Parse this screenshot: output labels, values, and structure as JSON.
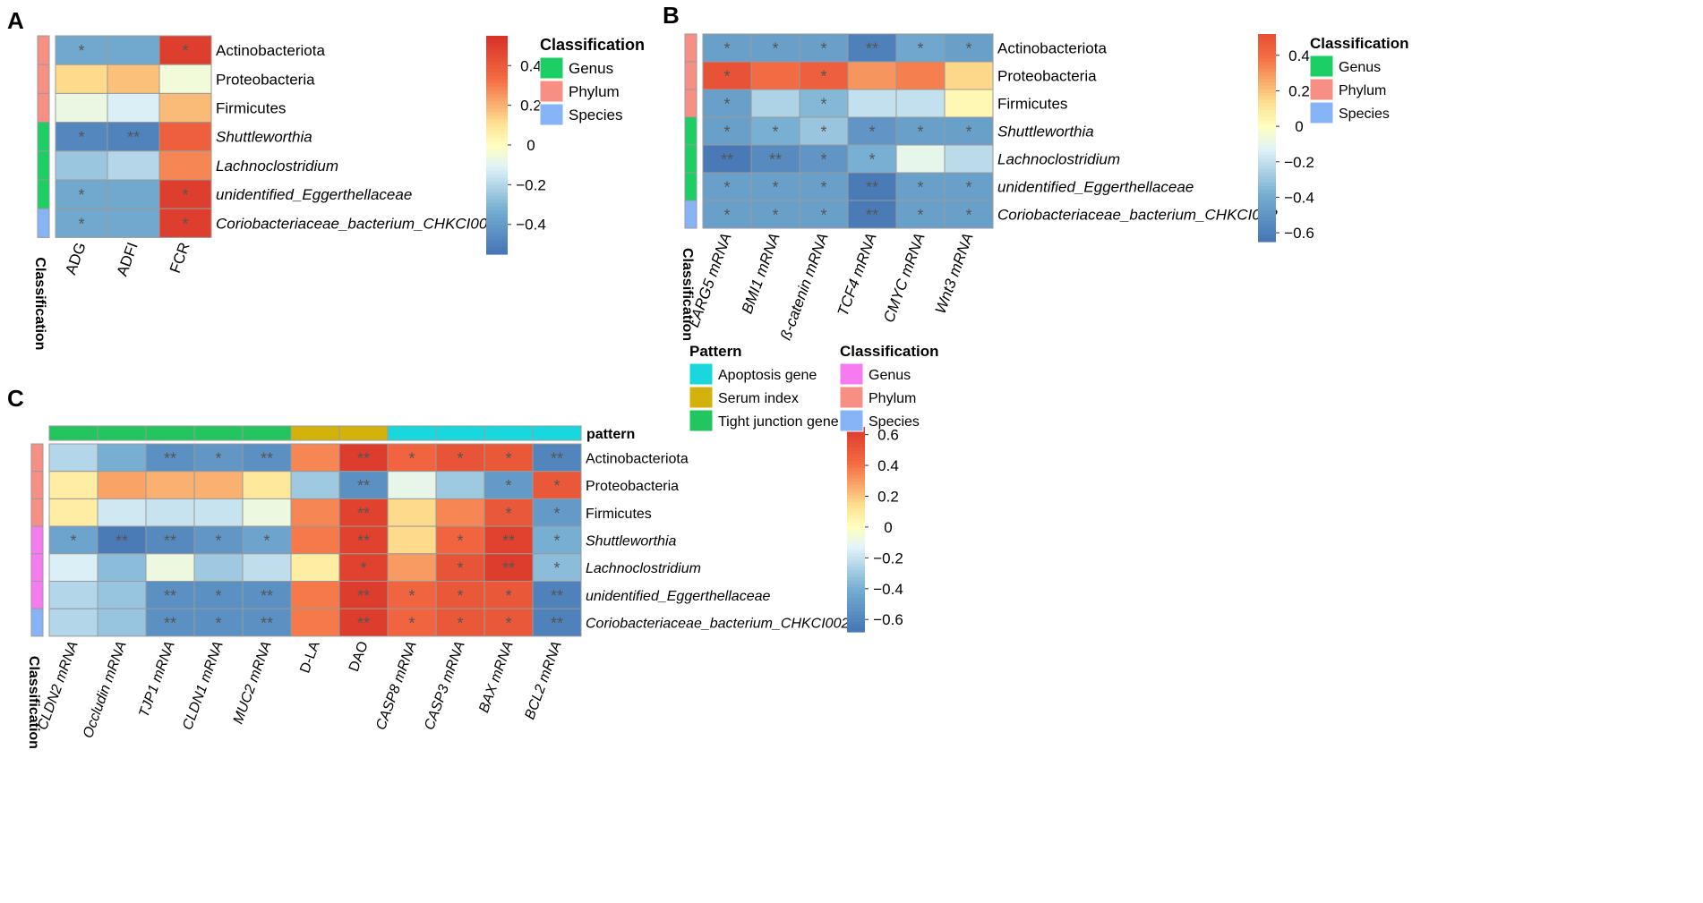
{
  "figure": {
    "description": "Spearman correlation heatmaps between gut microbiota and host indices"
  },
  "chart_data": [
    {
      "id": "A",
      "type": "heatmap",
      "panel_label": "A",
      "rows": [
        "Actinobacteriota",
        "Proteobacteria",
        "Firmicutes",
        "Shuttleworthia",
        "Lachnoclostridium",
        "unidentified_Eggerthellaceae",
        "Coriobacteriaceae_bacterium_CHKCI002"
      ],
      "row_italic": [
        false,
        false,
        false,
        true,
        true,
        true,
        true
      ],
      "row_class": [
        "Phylum",
        "Phylum",
        "Phylum",
        "Genus",
        "Genus",
        "Genus",
        "Species"
      ],
      "columns": [
        "ADG",
        "ADFI",
        "FCR"
      ],
      "values": [
        [
          -0.35,
          -0.35,
          0.5
        ],
        [
          0.12,
          0.17,
          -0.05
        ],
        [
          -0.07,
          -0.12,
          0.18
        ],
        [
          -0.48,
          -0.5,
          0.38
        ],
        [
          -0.25,
          -0.2,
          0.28
        ],
        [
          -0.35,
          -0.35,
          0.5
        ],
        [
          -0.35,
          -0.35,
          0.5
        ]
      ],
      "significance": [
        [
          "*",
          "",
          "*"
        ],
        [
          "",
          "",
          ""
        ],
        [
          "",
          "",
          ""
        ],
        [
          "*",
          "**",
          ""
        ],
        [
          "",
          "",
          ""
        ],
        [
          "*",
          "",
          "*"
        ],
        [
          "*",
          "",
          "*"
        ]
      ],
      "classification_label": "Classification",
      "colorbar": {
        "min": -0.55,
        "max": 0.55,
        "ticks": [
          0.4,
          0.2,
          0,
          -0.2,
          -0.4
        ],
        "tick_labels": [
          "0.4",
          "0.2",
          "0",
          "−0.2",
          "−0.4"
        ]
      },
      "legends": [
        {
          "title": "Classification",
          "items": [
            {
              "label": "Genus",
              "color": "#1ccf65"
            },
            {
              "label": "Phylum",
              "color": "#f78f85"
            },
            {
              "label": "Species",
              "color": "#86b4f6"
            }
          ]
        }
      ]
    },
    {
      "id": "B",
      "type": "heatmap",
      "panel_label": "B",
      "rows": [
        "Actinobacteriota",
        "Proteobacteria",
        "Firmicutes",
        "Shuttleworthia",
        "Lachnoclostridium",
        "unidentified_Eggerthellaceae",
        "Coriobacteriaceae_bacterium_CHKCI002"
      ],
      "row_italic": [
        false,
        false,
        false,
        true,
        true,
        true,
        true
      ],
      "row_class": [
        "Phylum",
        "Phylum",
        "Phylum",
        "Genus",
        "Genus",
        "Genus",
        "Species"
      ],
      "columns": [
        "LARG5 mRNA",
        "BMI1 mRNA",
        "ß-catenin mRNA",
        "TCF4 mRNA",
        "CMYC mRNA",
        "Wnt3 mRNA"
      ],
      "values": [
        [
          -0.45,
          -0.45,
          -0.45,
          -0.6,
          -0.42,
          -0.45
        ],
        [
          0.5,
          0.4,
          0.45,
          0.3,
          0.35,
          0.15
        ],
        [
          -0.45,
          -0.25,
          -0.35,
          -0.2,
          -0.2,
          0.03
        ],
        [
          -0.45,
          -0.38,
          -0.3,
          -0.5,
          -0.45,
          -0.45
        ],
        [
          -0.63,
          -0.55,
          -0.5,
          -0.38,
          -0.1,
          -0.22
        ],
        [
          -0.45,
          -0.45,
          -0.45,
          -0.62,
          -0.45,
          -0.45
        ],
        [
          -0.45,
          -0.45,
          -0.45,
          -0.62,
          -0.45,
          -0.45
        ]
      ],
      "significance": [
        [
          "*",
          "*",
          "*",
          "**",
          "*",
          "*"
        ],
        [
          "*",
          "",
          "*",
          "",
          "",
          ""
        ],
        [
          "*",
          "",
          "*",
          "",
          "",
          ""
        ],
        [
          "*",
          "*",
          "*",
          "*",
          "*",
          "*"
        ],
        [
          "**",
          "**",
          "*",
          "*",
          "",
          ""
        ],
        [
          "*",
          "*",
          "*",
          "**",
          "*",
          "*"
        ],
        [
          "*",
          "*",
          "*",
          "**",
          "*",
          "*"
        ]
      ],
      "classification_label": "Classification",
      "colorbar": {
        "min": -0.65,
        "max": 0.52,
        "ticks": [
          0.4,
          0.2,
          0,
          -0.2,
          -0.4,
          -0.6
        ],
        "tick_labels": [
          "0.4",
          "0.2",
          "0",
          "−0.2",
          "−0.4",
          "−0.6"
        ]
      },
      "legends": [
        {
          "title": "Classification",
          "items": [
            {
              "label": "Genus",
              "color": "#1ccf65"
            },
            {
              "label": "Phylum",
              "color": "#f78f85"
            },
            {
              "label": "Species",
              "color": "#86b4f6"
            }
          ]
        }
      ]
    },
    {
      "id": "C",
      "type": "heatmap",
      "panel_label": "C",
      "rows": [
        "Actinobacteriota",
        "Proteobacteria",
        "Firmicutes",
        "Shuttleworthia",
        "Lachnoclostridium",
        "unidentified_Eggerthellaceae",
        "Coriobacteriaceae_bacterium_CHKCI002"
      ],
      "row_italic": [
        false,
        false,
        false,
        true,
        true,
        true,
        true
      ],
      "row_class": [
        "Phylum",
        "Phylum",
        "Phylum",
        "Genus",
        "Genus",
        "Genus",
        "Species"
      ],
      "columns": [
        "CLDN2 mRNA",
        "Occludin mRNA",
        "TJP1 mRNA",
        "CLDN1 mRNA",
        "MUC2 mRNA",
        "D-LA",
        "DAO",
        "CASP8 mRNA",
        "CASP3 mRNA",
        "BAX mRNA",
        "BCL2 mRNA"
      ],
      "column_pattern": [
        "Tight junction gene",
        "Tight junction gene",
        "Tight junction gene",
        "Tight junction gene",
        "Tight junction gene",
        "Serum index",
        "Serum index",
        "Apoptosis gene",
        "Apoptosis gene",
        "Apoptosis gene",
        "Apoptosis gene"
      ],
      "pattern_label": "pattern",
      "values": [
        [
          -0.25,
          -0.4,
          -0.55,
          -0.52,
          -0.55,
          0.35,
          0.62,
          0.45,
          0.52,
          0.5,
          -0.6
        ],
        [
          0.08,
          0.28,
          0.25,
          0.25,
          0.1,
          -0.3,
          -0.55,
          -0.1,
          -0.3,
          -0.5,
          0.5
        ],
        [
          0.08,
          -0.18,
          -0.2,
          -0.2,
          -0.08,
          0.35,
          0.6,
          0.15,
          0.35,
          0.5,
          -0.5
        ],
        [
          -0.45,
          -0.65,
          -0.58,
          -0.52,
          -0.45,
          0.38,
          0.6,
          0.15,
          0.45,
          0.6,
          -0.4
        ],
        [
          -0.15,
          -0.35,
          -0.08,
          -0.3,
          -0.22,
          0.08,
          0.6,
          0.3,
          0.52,
          0.62,
          -0.35
        ],
        [
          -0.25,
          -0.32,
          -0.55,
          -0.55,
          -0.55,
          0.38,
          0.62,
          0.45,
          0.5,
          0.5,
          -0.62
        ],
        [
          -0.25,
          -0.32,
          -0.55,
          -0.55,
          -0.55,
          0.38,
          0.62,
          0.45,
          0.5,
          0.5,
          -0.62
        ]
      ],
      "significance": [
        [
          "",
          "",
          "**",
          "*",
          "**",
          "",
          "**",
          "*",
          "*",
          "*",
          "**"
        ],
        [
          "",
          "",
          "",
          "",
          "",
          "",
          "**",
          "",
          "",
          "*",
          "*"
        ],
        [
          "",
          "",
          "",
          "",
          "",
          "",
          "**",
          "",
          "",
          "*",
          "*"
        ],
        [
          "*",
          "**",
          "**",
          "*",
          "*",
          "",
          "**",
          "",
          "*",
          "**",
          "*"
        ],
        [
          "",
          "",
          "",
          "",
          "",
          "",
          "*",
          "",
          "*",
          "**",
          "*"
        ],
        [
          "",
          "",
          "**",
          "*",
          "**",
          "",
          "**",
          "*",
          "*",
          "*",
          "**"
        ],
        [
          "",
          "",
          "**",
          "*",
          "**",
          "",
          "**",
          "*",
          "*",
          "*",
          "**"
        ]
      ],
      "classification_label": "Classification",
      "colorbar": {
        "min": -0.68,
        "max": 0.65,
        "ticks": [
          0.6,
          0.4,
          0.2,
          0,
          -0.2,
          -0.4,
          -0.6
        ],
        "tick_labels": [
          "0.6",
          "0.4",
          "0.2",
          "0",
          "−0.2",
          "−0.4",
          "−0.6"
        ]
      },
      "legends": [
        {
          "title": "Pattern",
          "items": [
            {
              "label": "Apoptosis gene",
              "color": "#18d8de"
            },
            {
              "label": "Serum index",
              "color": "#d4b20c"
            },
            {
              "label": "Tight junction gene",
              "color": "#22c55e"
            }
          ]
        },
        {
          "title": "Classification",
          "items": [
            {
              "label": "Genus",
              "color": "#f77bf0"
            },
            {
              "label": "Phylum",
              "color": "#f78f85"
            },
            {
              "label": "Species",
              "color": "#86b4f6"
            }
          ]
        }
      ]
    }
  ]
}
